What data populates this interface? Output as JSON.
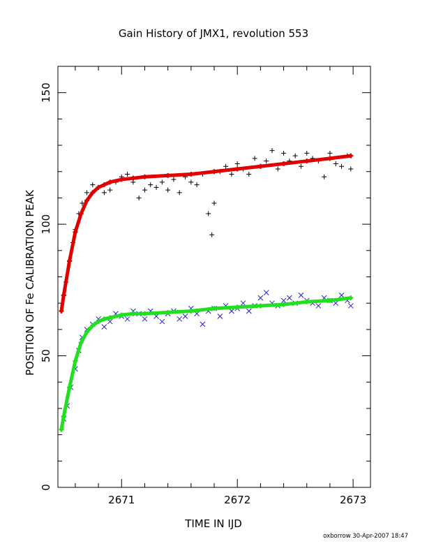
{
  "chart_data": {
    "type": "scatter",
    "title": "Gain History of JMX1, revolution 553",
    "xlabel": "TIME IN IJD",
    "ylabel": "POSITION OF Fe CALIBRATION PEAK",
    "xlim": [
      2670.45,
      2673.15
    ],
    "ylim": [
      0,
      160
    ],
    "xticks": [
      2671,
      2672,
      2673
    ],
    "yticks": [
      0,
      50,
      100,
      150
    ],
    "grid": false,
    "footer": "oxborrow 30-Apr-2007 18:47",
    "series": [
      {
        "marker": "plus",
        "color": "#000000",
        "x": [
          2670.5,
          2670.52,
          2670.55,
          2670.58,
          2670.6,
          2670.63,
          2670.66,
          2670.7,
          2670.75,
          2670.8,
          2670.85,
          2670.9,
          2670.95,
          2671.0,
          2671.05,
          2671.1,
          2671.15,
          2671.2,
          2671.25,
          2671.3,
          2671.35,
          2671.4,
          2671.45,
          2671.5,
          2671.55,
          2671.6,
          2671.65,
          2671.7,
          2671.75,
          2671.78,
          2671.8,
          2671.85,
          2671.9,
          2671.95,
          2672.0,
          2672.05,
          2672.1,
          2672.15,
          2672.2,
          2672.25,
          2672.3,
          2672.35,
          2672.4,
          2672.45,
          2672.5,
          2672.55,
          2672.6,
          2672.65,
          2672.7,
          2672.75,
          2672.8,
          2672.85,
          2672.9,
          2672.95,
          2672.98
        ],
        "y": [
          73,
          78,
          86,
          93,
          98,
          104,
          108,
          112,
          115,
          114,
          112,
          113,
          116,
          118,
          119,
          116,
          110,
          113,
          115,
          114,
          116,
          113,
          117,
          112,
          118,
          116,
          115,
          119,
          104,
          96,
          108,
          120,
          122,
          119,
          123,
          121,
          119,
          125,
          122,
          124,
          128,
          121,
          127,
          124,
          126,
          122,
          127,
          125,
          124,
          118,
          127,
          123,
          122,
          126,
          121
        ]
      },
      {
        "marker": "x",
        "color": "#2020c8",
        "x": [
          2670.5,
          2670.53,
          2670.56,
          2670.6,
          2670.63,
          2670.66,
          2670.7,
          2670.75,
          2670.8,
          2670.85,
          2670.9,
          2670.95,
          2671.0,
          2671.05,
          2671.1,
          2671.15,
          2671.2,
          2671.25,
          2671.3,
          2671.35,
          2671.4,
          2671.45,
          2671.5,
          2671.55,
          2671.6,
          2671.65,
          2671.7,
          2671.75,
          2671.8,
          2671.85,
          2671.9,
          2671.95,
          2672.0,
          2672.05,
          2672.1,
          2672.15,
          2672.2,
          2672.25,
          2672.3,
          2672.35,
          2672.4,
          2672.45,
          2672.5,
          2672.55,
          2672.6,
          2672.65,
          2672.7,
          2672.75,
          2672.8,
          2672.85,
          2672.9,
          2672.95,
          2672.98
        ],
        "y": [
          26,
          31,
          38,
          45,
          52,
          57,
          60,
          62,
          64,
          61,
          63,
          66,
          65,
          64,
          67,
          66,
          64,
          67,
          65,
          63,
          66,
          67,
          64,
          65,
          68,
          66,
          62,
          67,
          68,
          65,
          69,
          67,
          68,
          70,
          67,
          69,
          72,
          74,
          70,
          69,
          71,
          72,
          70,
          73,
          71,
          70,
          69,
          72,
          71,
          70,
          73,
          71,
          69
        ]
      },
      {
        "marker": "plus",
        "color": "#e00000",
        "x": [
          2670.48,
          2670.5,
          2670.55,
          2670.6,
          2670.65,
          2670.7,
          2670.75,
          2670.8,
          2670.85,
          2670.9,
          2671.0,
          2671.1,
          2671.2,
          2671.4,
          2671.6,
          2671.8,
          2672.0,
          2672.2,
          2672.4,
          2672.6,
          2672.8,
          2672.98
        ],
        "y": [
          67,
          73,
          86,
          97,
          104,
          109,
          112,
          114,
          115,
          116,
          117,
          117.5,
          118,
          118.5,
          119,
          120,
          121,
          122,
          123,
          124,
          125,
          126
        ]
      },
      {
        "marker": "plus",
        "color": "#20e020",
        "x": [
          2670.48,
          2670.5,
          2670.55,
          2670.6,
          2670.65,
          2670.7,
          2670.75,
          2670.8,
          2670.85,
          2670.9,
          2671.0,
          2671.1,
          2671.2,
          2671.4,
          2671.6,
          2671.8,
          2672.0,
          2672.2,
          2672.4,
          2672.6,
          2672.8,
          2672.98
        ],
        "y": [
          22,
          27,
          38,
          48,
          55,
          59,
          61.5,
          63,
          64,
          64.5,
          65.5,
          66,
          66,
          66.5,
          67,
          68,
          68.5,
          69,
          69.5,
          70.5,
          71,
          72
        ]
      }
    ]
  }
}
